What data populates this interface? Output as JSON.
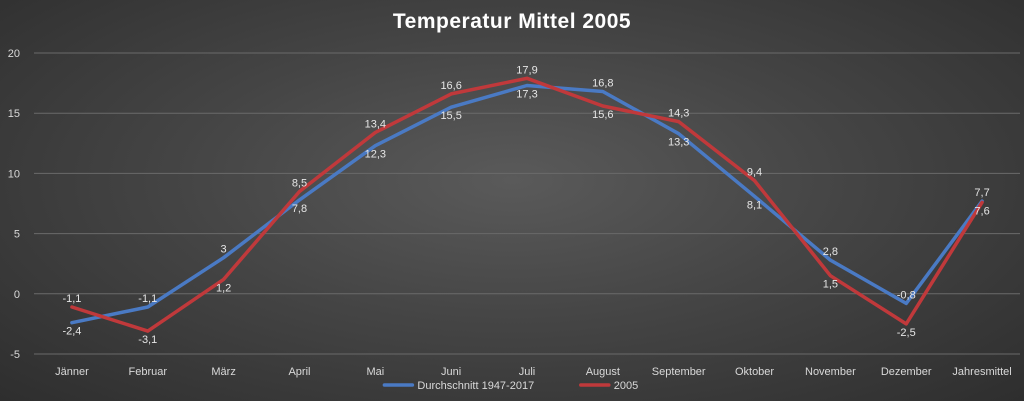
{
  "chart_data": {
    "type": "line",
    "title": "Temperatur Mittel 2005",
    "categories": [
      "Jänner",
      "Februar",
      "März",
      "April",
      "Mai",
      "Juni",
      "Juli",
      "August",
      "September",
      "Oktober",
      "November",
      "Dezember",
      "Jahresmittel"
    ],
    "series": [
      {
        "name": "Durchschnitt 1947-2017",
        "color": "#4a7ac4",
        "values": [
          -2.4,
          -1.1,
          3.0,
          7.8,
          12.3,
          15.5,
          17.3,
          16.8,
          13.3,
          8.1,
          2.8,
          -0.8,
          7.7
        ],
        "labels": [
          "-2,4",
          "-1,1",
          "3",
          "7,8",
          "12,3",
          "15,5",
          "17,3",
          "16,8",
          "13,3",
          "8,1",
          "2,8",
          "-0,8",
          "7,7"
        ]
      },
      {
        "name": "2005",
        "color": "#c0393b",
        "values": [
          -1.1,
          -3.1,
          1.2,
          8.5,
          13.4,
          16.6,
          17.9,
          15.6,
          14.3,
          9.4,
          1.5,
          -2.5,
          7.6
        ],
        "labels": [
          "-1,1",
          "-3,1",
          "1,2",
          "8,5",
          "13,4",
          "16,6",
          "17,9",
          "15,6",
          "14,3",
          "9,4",
          "1,5",
          "-2,5",
          "7,6"
        ]
      }
    ],
    "ylim": [
      -5,
      20
    ],
    "yticks": [
      "-5",
      "0",
      "5",
      "10",
      "15",
      "20"
    ],
    "grid": true,
    "legend_position": "bottom",
    "xlabel": "",
    "ylabel": ""
  }
}
